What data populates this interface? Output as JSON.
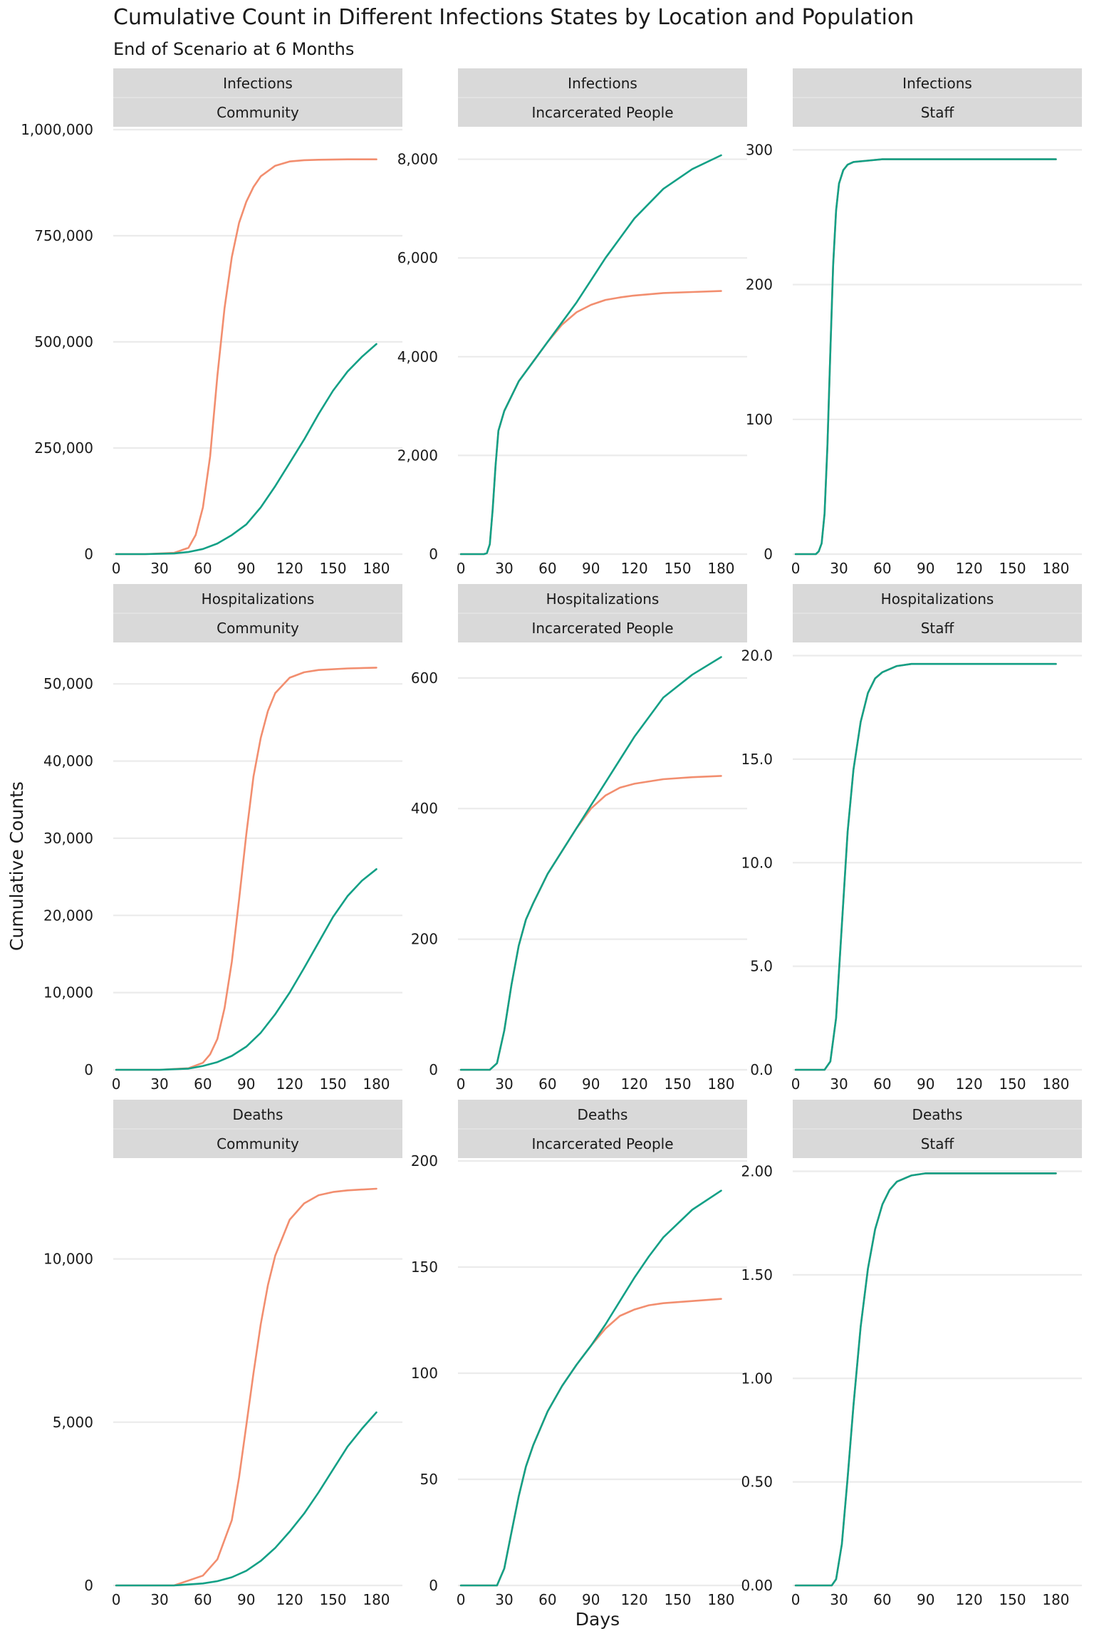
{
  "title": "Cumulative Count in Different Infections States by Location and Population",
  "subtitle": "End of Scenario at 6 Months",
  "xlabel": "Days",
  "ylabel": "Cumulative Counts",
  "colors": {
    "orange": "#f28e6f",
    "teal": "#12a086",
    "strip": "#d9d9d9",
    "grid": "#ebebeb",
    "text": "#1a1a1a"
  },
  "chart_data": [
    {
      "type": "line",
      "row": "Infections",
      "col": "Community",
      "xticks": [
        0,
        30,
        60,
        90,
        120,
        150,
        180
      ],
      "xlim": [
        -2,
        198
      ],
      "ylim": [
        0,
        1000000
      ],
      "yticks": [
        0,
        250000,
        500000,
        750000,
        1000000
      ],
      "ytick_labels": [
        "0",
        "250,000",
        "500,000",
        "750,000",
        "1,000,000"
      ],
      "series": [
        {
          "name": "orange",
          "x": [
            0,
            20,
            40,
            50,
            55,
            60,
            65,
            70,
            75,
            80,
            85,
            90,
            95,
            100,
            110,
            120,
            130,
            140,
            160,
            180
          ],
          "values": [
            0,
            0,
            3000,
            15000,
            45000,
            110000,
            230000,
            420000,
            580000,
            700000,
            780000,
            830000,
            865000,
            890000,
            915000,
            925000,
            928000,
            929000,
            930000,
            930000
          ]
        },
        {
          "name": "teal",
          "x": [
            0,
            20,
            40,
            50,
            60,
            70,
            80,
            90,
            100,
            110,
            120,
            130,
            140,
            150,
            160,
            170,
            180
          ],
          "values": [
            0,
            0,
            1500,
            5000,
            12000,
            25000,
            45000,
            70000,
            110000,
            160000,
            215000,
            270000,
            330000,
            385000,
            430000,
            465000,
            495000
          ]
        }
      ]
    },
    {
      "type": "line",
      "row": "Infections",
      "col": "Incarcerated People",
      "xticks": [
        0,
        30,
        60,
        90,
        120,
        150,
        180
      ],
      "xlim": [
        -2,
        198
      ],
      "ylim": [
        0,
        8600
      ],
      "yticks": [
        0,
        2000,
        4000,
        6000,
        8000
      ],
      "ytick_labels": [
        "0",
        "2,000",
        "4,000",
        "6,000",
        "8,000"
      ],
      "series": [
        {
          "name": "orange",
          "x": [
            0,
            16,
            18,
            20,
            22,
            24,
            26,
            30,
            40,
            50,
            60,
            70,
            80,
            90,
            100,
            110,
            120,
            140,
            160,
            180
          ],
          "values": [
            0,
            0,
            20,
            200,
            900,
            1800,
            2500,
            2900,
            3500,
            3900,
            4300,
            4650,
            4900,
            5050,
            5150,
            5200,
            5240,
            5290,
            5310,
            5330
          ]
        },
        {
          "name": "teal",
          "x": [
            0,
            16,
            18,
            20,
            22,
            24,
            26,
            30,
            40,
            50,
            60,
            70,
            80,
            90,
            100,
            110,
            120,
            140,
            160,
            180
          ],
          "values": [
            0,
            0,
            20,
            200,
            900,
            1800,
            2500,
            2900,
            3500,
            3900,
            4300,
            4700,
            5100,
            5550,
            6000,
            6400,
            6800,
            7400,
            7800,
            8080
          ]
        }
      ]
    },
    {
      "type": "line",
      "row": "Infections",
      "col": "Staff",
      "xticks": [
        0,
        30,
        60,
        90,
        120,
        150,
        180
      ],
      "xlim": [
        -2,
        198
      ],
      "ylim": [
        0,
        315
      ],
      "yticks": [
        0,
        100,
        200,
        300
      ],
      "ytick_labels": [
        "0",
        "100",
        "200",
        "300"
      ],
      "series": [
        {
          "name": "orange",
          "x": [
            0,
            14,
            16,
            18,
            20,
            22,
            24,
            26,
            28,
            30,
            33,
            36,
            40,
            50,
            60,
            90,
            180
          ],
          "values": [
            0,
            0,
            2,
            8,
            30,
            80,
            150,
            215,
            255,
            275,
            285,
            289,
            291,
            292,
            293,
            293,
            293
          ]
        },
        {
          "name": "teal",
          "x": [
            0,
            14,
            16,
            18,
            20,
            22,
            24,
            26,
            28,
            30,
            33,
            36,
            40,
            50,
            60,
            90,
            180
          ],
          "values": [
            0,
            0,
            2,
            8,
            30,
            80,
            150,
            215,
            255,
            275,
            285,
            289,
            291,
            292,
            293,
            293,
            293
          ]
        }
      ]
    },
    {
      "type": "line",
      "row": "Hospitalizations",
      "col": "Community",
      "xticks": [
        0,
        30,
        60,
        90,
        120,
        150,
        180
      ],
      "xlim": [
        -2,
        198
      ],
      "ylim": [
        0,
        55000
      ],
      "yticks": [
        0,
        10000,
        20000,
        30000,
        40000,
        50000
      ],
      "ytick_labels": [
        "0",
        "10,000",
        "20,000",
        "30,000",
        "40,000",
        "50,000"
      ],
      "series": [
        {
          "name": "orange",
          "x": [
            0,
            30,
            50,
            60,
            65,
            70,
            75,
            80,
            85,
            90,
            95,
            100,
            105,
            110,
            120,
            130,
            140,
            160,
            180
          ],
          "values": [
            0,
            0,
            200,
            900,
            2000,
            4000,
            8000,
            14000,
            22000,
            30500,
            38000,
            43000,
            46500,
            48800,
            50800,
            51500,
            51800,
            52000,
            52100
          ]
        },
        {
          "name": "teal",
          "x": [
            0,
            30,
            50,
            60,
            70,
            80,
            90,
            100,
            110,
            120,
            130,
            140,
            150,
            160,
            170,
            180
          ],
          "values": [
            0,
            0,
            150,
            500,
            1000,
            1800,
            3000,
            4800,
            7200,
            10000,
            13200,
            16500,
            19800,
            22500,
            24500,
            26000
          ]
        }
      ]
    },
    {
      "type": "line",
      "row": "Hospitalizations",
      "col": "Incarcerated People",
      "xticks": [
        0,
        30,
        60,
        90,
        120,
        150,
        180
      ],
      "xlim": [
        -2,
        198
      ],
      "ylim": [
        0,
        650
      ],
      "yticks": [
        0,
        200,
        400,
        600
      ],
      "ytick_labels": [
        "0",
        "200",
        "400",
        "600"
      ],
      "series": [
        {
          "name": "orange",
          "x": [
            0,
            20,
            25,
            30,
            35,
            40,
            45,
            50,
            60,
            70,
            80,
            90,
            100,
            110,
            120,
            140,
            160,
            180
          ],
          "values": [
            0,
            0,
            10,
            60,
            130,
            190,
            230,
            255,
            300,
            335,
            370,
            400,
            420,
            432,
            438,
            445,
            448,
            450
          ]
        },
        {
          "name": "teal",
          "x": [
            0,
            20,
            25,
            30,
            35,
            40,
            45,
            50,
            60,
            70,
            80,
            90,
            100,
            110,
            120,
            140,
            160,
            180
          ],
          "values": [
            0,
            0,
            10,
            60,
            130,
            190,
            230,
            255,
            300,
            335,
            370,
            405,
            440,
            475,
            510,
            570,
            605,
            632
          ]
        }
      ]
    },
    {
      "type": "line",
      "row": "Hospitalizations",
      "col": "Staff",
      "xticks": [
        0,
        30,
        60,
        90,
        120,
        150,
        180
      ],
      "xlim": [
        -2,
        198
      ],
      "ylim": [
        0,
        20.5
      ],
      "yticks": [
        0,
        5,
        10,
        15,
        20
      ],
      "ytick_labels": [
        "0.0",
        "5.0",
        "10.0",
        "15.0",
        "20.0"
      ],
      "series": [
        {
          "name": "orange",
          "x": [
            0,
            20,
            24,
            28,
            32,
            36,
            40,
            45,
            50,
            55,
            60,
            70,
            80,
            100,
            180
          ],
          "values": [
            0,
            0,
            0.4,
            2.5,
            7,
            11.5,
            14.5,
            16.8,
            18.2,
            18.9,
            19.2,
            19.5,
            19.6,
            19.6,
            19.6
          ]
        },
        {
          "name": "teal",
          "x": [
            0,
            20,
            24,
            28,
            32,
            36,
            40,
            45,
            50,
            55,
            60,
            70,
            80,
            100,
            180
          ],
          "values": [
            0,
            0,
            0.4,
            2.5,
            7,
            11.5,
            14.5,
            16.8,
            18.2,
            18.9,
            19.2,
            19.5,
            19.6,
            19.6,
            19.6
          ]
        }
      ]
    },
    {
      "type": "line",
      "row": "Deaths",
      "col": "Community",
      "xticks": [
        0,
        30,
        60,
        90,
        120,
        150,
        180
      ],
      "xlim": [
        -2,
        198
      ],
      "ylim": [
        0,
        13000
      ],
      "yticks": [
        0,
        5000,
        10000
      ],
      "ytick_labels": [
        "0",
        "5,000",
        "10,000"
      ],
      "series": [
        {
          "name": "orange",
          "x": [
            0,
            40,
            60,
            70,
            80,
            85,
            90,
            95,
            100,
            105,
            110,
            120,
            130,
            140,
            150,
            160,
            180
          ],
          "values": [
            0,
            0,
            300,
            800,
            2000,
            3300,
            4900,
            6500,
            8000,
            9200,
            10100,
            11200,
            11700,
            11950,
            12050,
            12100,
            12150
          ]
        },
        {
          "name": "teal",
          "x": [
            0,
            40,
            60,
            70,
            80,
            90,
            100,
            110,
            120,
            130,
            140,
            150,
            160,
            170,
            180
          ],
          "values": [
            0,
            0,
            60,
            130,
            250,
            450,
            750,
            1150,
            1650,
            2200,
            2850,
            3550,
            4250,
            4800,
            5300
          ]
        }
      ]
    },
    {
      "type": "line",
      "row": "Deaths",
      "col": "Incarcerated People",
      "xticks": [
        0,
        30,
        60,
        90,
        120,
        150,
        180
      ],
      "xlim": [
        -2,
        198
      ],
      "ylim": [
        0,
        200
      ],
      "yticks": [
        0,
        50,
        100,
        150,
        200
      ],
      "ytick_labels": [
        "0",
        "50",
        "100",
        "150",
        "200"
      ],
      "series": [
        {
          "name": "orange",
          "x": [
            0,
            25,
            30,
            35,
            40,
            45,
            50,
            60,
            70,
            80,
            90,
            100,
            110,
            120,
            130,
            140,
            160,
            180
          ],
          "values": [
            0,
            0,
            8,
            25,
            42,
            56,
            66,
            82,
            94,
            104,
            113,
            121,
            127,
            130,
            132,
            133,
            134,
            135
          ]
        },
        {
          "name": "teal",
          "x": [
            0,
            25,
            30,
            35,
            40,
            45,
            50,
            60,
            70,
            80,
            90,
            100,
            110,
            120,
            130,
            140,
            160,
            180
          ],
          "values": [
            0,
            0,
            8,
            25,
            42,
            56,
            66,
            82,
            94,
            104,
            113,
            123,
            134,
            145,
            155,
            164,
            177,
            186
          ]
        }
      ]
    },
    {
      "type": "line",
      "row": "Deaths",
      "col": "Staff",
      "xticks": [
        0,
        30,
        60,
        90,
        120,
        150,
        180
      ],
      "xlim": [
        -2,
        198
      ],
      "ylim": [
        0,
        2.05
      ],
      "yticks": [
        0,
        0.5,
        1,
        1.5,
        2
      ],
      "ytick_labels": [
        "0.00",
        "0.50",
        "1.00",
        "1.50",
        "2.00"
      ],
      "series": [
        {
          "name": "orange",
          "x": [
            0,
            25,
            28,
            32,
            36,
            40,
            45,
            50,
            55,
            60,
            65,
            70,
            80,
            90,
            100,
            120,
            180
          ],
          "values": [
            0,
            0,
            0.03,
            0.2,
            0.52,
            0.87,
            1.25,
            1.53,
            1.72,
            1.84,
            1.91,
            1.95,
            1.98,
            1.99,
            1.99,
            1.99,
            1.99
          ]
        },
        {
          "name": "teal",
          "x": [
            0,
            25,
            28,
            32,
            36,
            40,
            45,
            50,
            55,
            60,
            65,
            70,
            80,
            90,
            100,
            120,
            180
          ],
          "values": [
            0,
            0,
            0.03,
            0.2,
            0.52,
            0.87,
            1.25,
            1.53,
            1.72,
            1.84,
            1.91,
            1.95,
            1.98,
            1.99,
            1.99,
            1.99,
            1.99
          ]
        }
      ]
    }
  ]
}
